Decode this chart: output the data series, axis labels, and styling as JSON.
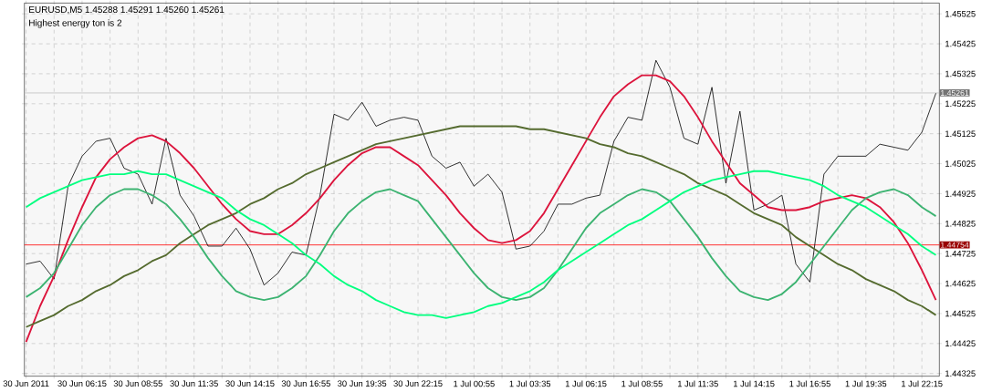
{
  "chart_data": {
    "type": "line",
    "title": "EURUSD,M5  1.45288 1.45291 1.45260 1.45261",
    "subtitle": "Highest energy ton is 2",
    "x": [
      "2011-06-30T03:35",
      "2011-06-30T04:15",
      "2011-06-30T04:55",
      "2011-06-30T05:35",
      "2011-06-30T06:15",
      "2011-06-30T06:55",
      "2011-06-30T07:35",
      "2011-06-30T08:15",
      "2011-06-30T08:55",
      "2011-06-30T09:35",
      "2011-06-30T10:15",
      "2011-06-30T10:55",
      "2011-06-30T11:35",
      "2011-06-30T12:15",
      "2011-06-30T12:55",
      "2011-06-30T13:35",
      "2011-06-30T14:15",
      "2011-06-30T14:55",
      "2011-06-30T15:35",
      "2011-06-30T16:15",
      "2011-06-30T16:55",
      "2011-06-30T17:35",
      "2011-06-30T18:15",
      "2011-06-30T18:55",
      "2011-06-30T19:35",
      "2011-06-30T20:15",
      "2011-06-30T20:55",
      "2011-06-30T21:35",
      "2011-06-30T22:15",
      "2011-06-30T22:55",
      "2011-06-30T23:35",
      "2011-07-01T00:15",
      "2011-07-01T00:55",
      "2011-07-01T01:35",
      "2011-07-01T02:15",
      "2011-07-01T02:55",
      "2011-07-01T03:35",
      "2011-07-01T04:15",
      "2011-07-01T04:55",
      "2011-07-01T05:35",
      "2011-07-01T06:15",
      "2011-07-01T06:55",
      "2011-07-01T07:35",
      "2011-07-01T08:15",
      "2011-07-01T08:55",
      "2011-07-01T09:35",
      "2011-07-01T10:15",
      "2011-07-01T10:55",
      "2011-07-01T11:35",
      "2011-07-01T12:15",
      "2011-07-01T12:55",
      "2011-07-01T13:35",
      "2011-07-01T14:15",
      "2011-07-01T14:55",
      "2011-07-01T15:35",
      "2011-07-01T16:15",
      "2011-07-01T16:55",
      "2011-07-01T17:35",
      "2011-07-01T18:15",
      "2011-07-01T18:55",
      "2011-07-01T19:35",
      "2011-07-01T20:15",
      "2011-07-01T20:55",
      "2011-07-01T21:35",
      "2011-07-01T22:15",
      "2011-07-01T22:55"
    ],
    "series": [
      {
        "color": "#000000",
        "values": [
          1.4469,
          1.447,
          1.4464,
          1.4495,
          1.4505,
          1.451,
          1.4511,
          1.4501,
          1.4499,
          1.4489,
          1.4511,
          1.4492,
          1.4485,
          1.4475,
          1.4475,
          1.4481,
          1.4474,
          1.4462,
          1.4466,
          1.4473,
          1.4472,
          1.4492,
          1.4519,
          1.4517,
          1.4523,
          1.4515,
          1.4517,
          1.4518,
          1.4517,
          1.4505,
          1.4501,
          1.4503,
          1.4495,
          1.4499,
          1.4493,
          1.4474,
          1.4475,
          1.448,
          1.4489,
          1.4489,
          1.4491,
          1.4492,
          1.451,
          1.4518,
          1.4517,
          1.4537,
          1.4528,
          1.4511,
          1.4509,
          1.4528,
          1.4496,
          1.452,
          1.4487,
          1.4489,
          1.4492,
          1.4469,
          1.4463,
          1.4499,
          1.4505,
          1.4505,
          1.4505,
          1.4509,
          1.4508,
          1.4507,
          1.4513,
          1.4526
        ]
      },
      {
        "color": "#dc143c",
        "values": [
          1.4443,
          1.4455,
          1.4465,
          1.4477,
          1.4488,
          1.4498,
          1.4504,
          1.4508,
          1.4511,
          1.4512,
          1.451,
          1.4506,
          1.4501,
          1.4495,
          1.4489,
          1.4484,
          1.448,
          1.4479,
          1.4479,
          1.4482,
          1.4486,
          1.4491,
          1.4497,
          1.4502,
          1.4506,
          1.4508,
          1.4508,
          1.4505,
          1.4502,
          1.4497,
          1.4492,
          1.4486,
          1.4481,
          1.4477,
          1.4476,
          1.4477,
          1.448,
          1.4486,
          1.4494,
          1.4502,
          1.451,
          1.4518,
          1.4525,
          1.4529,
          1.4532,
          1.4532,
          1.453,
          1.4525,
          1.4518,
          1.451,
          1.4503,
          1.4496,
          1.4492,
          1.4488,
          1.4487,
          1.4487,
          1.4488,
          1.449,
          1.4491,
          1.4492,
          1.4491,
          1.4488,
          1.4483,
          1.4476,
          1.4467,
          1.4457
        ]
      },
      {
        "color": "#556b2f",
        "values": [
          1.4448,
          1.445,
          1.4452,
          1.4455,
          1.4457,
          1.446,
          1.4462,
          1.4465,
          1.4467,
          1.447,
          1.4472,
          1.4476,
          1.4479,
          1.4482,
          1.4484,
          1.4486,
          1.4489,
          1.4491,
          1.4494,
          1.4496,
          1.4499,
          1.4501,
          1.4503,
          1.4505,
          1.4507,
          1.4509,
          1.451,
          1.4511,
          1.4512,
          1.4513,
          1.4514,
          1.4515,
          1.4515,
          1.4515,
          1.4515,
          1.4515,
          1.4514,
          1.4514,
          1.4513,
          1.4512,
          1.4511,
          1.4509,
          1.4508,
          1.4506,
          1.4505,
          1.4503,
          1.4501,
          1.4499,
          1.4496,
          1.4494,
          1.4492,
          1.4489,
          1.4486,
          1.4484,
          1.4482,
          1.4478,
          1.4475,
          1.4472,
          1.4469,
          1.4467,
          1.4464,
          1.4462,
          1.446,
          1.4457,
          1.4455,
          1.4452
        ]
      },
      {
        "color": "#3cb371",
        "values": [
          1.4458,
          1.4461,
          1.4466,
          1.4474,
          1.4482,
          1.4488,
          1.4492,
          1.4494,
          1.4494,
          1.4492,
          1.4489,
          1.4484,
          1.4478,
          1.4471,
          1.4465,
          1.446,
          1.4458,
          1.4457,
          1.4458,
          1.4461,
          1.4465,
          1.4472,
          1.448,
          1.4486,
          1.449,
          1.4493,
          1.4494,
          1.4492,
          1.449,
          1.4484,
          1.4478,
          1.4472,
          1.4466,
          1.4461,
          1.4458,
          1.4457,
          1.4458,
          1.4461,
          1.4467,
          1.4474,
          1.4481,
          1.4486,
          1.4489,
          1.4492,
          1.4494,
          1.4493,
          1.449,
          1.4484,
          1.4478,
          1.4471,
          1.4465,
          1.446,
          1.4458,
          1.4457,
          1.4459,
          1.4463,
          1.4469,
          1.4475,
          1.4481,
          1.4487,
          1.4491,
          1.4493,
          1.4494,
          1.4492,
          1.4488,
          1.4485
        ]
      },
      {
        "color": "#00ff7f",
        "values": [
          1.4488,
          1.4491,
          1.4493,
          1.4495,
          1.4497,
          1.4498,
          1.4499,
          1.4499,
          1.45,
          1.4499,
          1.4499,
          1.4497,
          1.4495,
          1.4493,
          1.4491,
          1.4487,
          1.4484,
          1.4482,
          1.4479,
          1.4476,
          1.4472,
          1.4469,
          1.4465,
          1.4462,
          1.446,
          1.4457,
          1.4455,
          1.4453,
          1.4452,
          1.4452,
          1.4451,
          1.4452,
          1.4453,
          1.4455,
          1.4456,
          1.4458,
          1.446,
          1.4463,
          1.4467,
          1.447,
          1.4473,
          1.4476,
          1.4479,
          1.4482,
          1.4484,
          1.4487,
          1.449,
          1.4493,
          1.4495,
          1.4497,
          1.4498,
          1.4499,
          1.45,
          1.45,
          1.4499,
          1.4498,
          1.4497,
          1.4495,
          1.4492,
          1.449,
          1.4488,
          1.4485,
          1.4482,
          1.4479,
          1.4475,
          1.4472
        ]
      }
    ],
    "xlim": [
      "2011-06-30T03:30",
      "2011-07-01T23:05"
    ],
    "xticks": [
      {
        "value": "2011-06-30T03:35",
        "label": "30 Jun 2011"
      },
      {
        "value": "2011-06-30T04:55",
        "label": null
      },
      {
        "value": "2011-06-30T06:15",
        "label": "30 Jun 06:15"
      },
      {
        "value": "2011-06-30T07:35",
        "label": null
      },
      {
        "value": "2011-06-30T08:55",
        "label": "30 Jun 08:55"
      },
      {
        "value": "2011-06-30T10:15",
        "label": null
      },
      {
        "value": "2011-06-30T11:35",
        "label": "30 Jun 11:35"
      },
      {
        "value": "2011-06-30T12:55",
        "label": null
      },
      {
        "value": "2011-06-30T14:15",
        "label": "30 Jun 14:15"
      },
      {
        "value": "2011-06-30T15:35",
        "label": null
      },
      {
        "value": "2011-06-30T16:55",
        "label": "30 Jun 16:55"
      },
      {
        "value": "2011-06-30T18:15",
        "label": null
      },
      {
        "value": "2011-06-30T19:35",
        "label": "30 Jun 19:35"
      },
      {
        "value": "2011-06-30T20:55",
        "label": null
      },
      {
        "value": "2011-06-30T22:15",
        "label": "30 Jun 22:15"
      },
      {
        "value": "2011-06-30T23:35",
        "label": null
      },
      {
        "value": "2011-07-01T00:55",
        "label": "1 Jul 00:55"
      },
      {
        "value": "2011-07-01T02:15",
        "label": null
      },
      {
        "value": "2011-07-01T03:35",
        "label": "1 Jul 03:35"
      },
      {
        "value": "2011-07-01T04:55",
        "label": null
      },
      {
        "value": "2011-07-01T06:15",
        "label": "1 Jul 06:15"
      },
      {
        "value": "2011-07-01T07:35",
        "label": null
      },
      {
        "value": "2011-07-01T08:55",
        "label": "1 Jul 08:55"
      },
      {
        "value": "2011-07-01T10:15",
        "label": null
      },
      {
        "value": "2011-07-01T11:35",
        "label": "1 Jul 11:35"
      },
      {
        "value": "2011-07-01T12:55",
        "label": null
      },
      {
        "value": "2011-07-01T14:15",
        "label": "1 Jul 14:15"
      },
      {
        "value": "2011-07-01T15:35",
        "label": null
      },
      {
        "value": "2011-07-01T16:55",
        "label": "1 Jul 16:55"
      },
      {
        "value": "2011-07-01T18:15",
        "label": null
      },
      {
        "value": "2011-07-01T19:35",
        "label": "1 Jul 19:35"
      },
      {
        "value": "2011-07-01T20:55",
        "label": null
      },
      {
        "value": "2011-07-01T22:15",
        "label": "1 Jul 22:15"
      }
    ],
    "ylim": [
      1.44316,
      1.45561
    ],
    "yticks": [
      1.44325,
      1.44425,
      1.44525,
      1.44625,
      1.44725,
      1.44825,
      1.44925,
      1.45025,
      1.45125,
      1.45225,
      1.45325,
      1.45425,
      1.45525
    ],
    "grid": true,
    "ref_lines": [
      {
        "axis": "y",
        "value": 1.45261,
        "label": "1.45261",
        "color": "#c0c0c0"
      },
      {
        "axis": "y",
        "value": 1.44754,
        "label": "1.44754",
        "color": "#ff0000"
      }
    ]
  }
}
